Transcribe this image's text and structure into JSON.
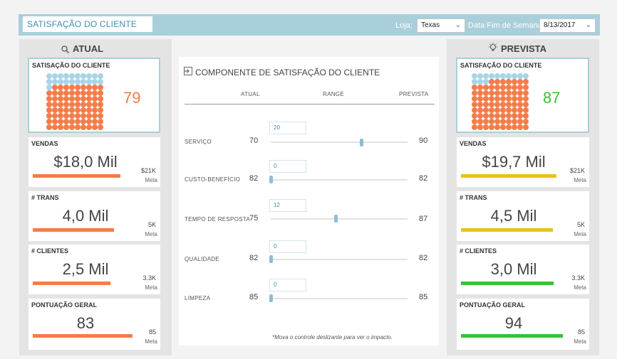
{
  "header": {
    "title": "SATISFAÇÃO DO CLIENTE",
    "store_label": "Loja:",
    "store_value": "Texas",
    "date_label": "Data Fim de Semana",
    "date_value": "8/13/2017"
  },
  "colors": {
    "orange": "#f47c4a",
    "light_blue": "#a8d5e6",
    "green": "#3bbf3b",
    "yellow": "#e8c21a"
  },
  "atual": {
    "title": "ATUAL",
    "satisfaction": {
      "label": "SATISAÇÃO DO CLIENTE",
      "value": "79",
      "percent": 79
    },
    "vendas": {
      "label": "VENDAS",
      "value": "$18,0 Mil",
      "meta": "$21K",
      "meta_label": "Meta",
      "fraction": 0.857
    },
    "trans": {
      "label": "# TRANS",
      "value": "4,0 Mil",
      "meta": "5K",
      "meta_label": "Meta",
      "fraction": 0.8
    },
    "clientes": {
      "label": "# CLIENTES",
      "value": "2,5 Mil",
      "meta": "3.3K",
      "meta_label": "Meta",
      "fraction": 0.76
    },
    "pontuacao": {
      "label": "PONTUAÇÃO GERAL",
      "value": "83",
      "meta": "85",
      "meta_label": "Meta",
      "fraction": 0.976
    }
  },
  "prevista": {
    "title": "PREVISTA",
    "satisfaction": {
      "label": "SATISFAÇÃO DO CLIENTE",
      "value": "87",
      "percent": 87
    },
    "vendas": {
      "label": "VENDAS",
      "value": "$19,7 Mil",
      "meta": "$21K",
      "meta_label": "Meta",
      "fraction": 0.938
    },
    "trans": {
      "label": "# TRANS",
      "value": "4,5 Mil",
      "meta": "5K",
      "meta_label": "Meta",
      "fraction": 0.9
    },
    "clientes": {
      "label": "# CLIENTES",
      "value": "3,0 Mil",
      "meta": "3.3K",
      "meta_label": "Meta",
      "fraction": 0.91
    },
    "pontuacao": {
      "label": "PONTUAÇÃO GERAL",
      "value": "94",
      "meta": "85",
      "meta_label": "Meta",
      "fraction": 1.0
    }
  },
  "components": {
    "title": "COMPONENTE DE SATISFAÇÃO DO CLIENTE",
    "col_atual": "ATUAL",
    "col_range": "RANGE",
    "col_prevista": "PREVISTA",
    "rows": [
      {
        "label": "SERVIÇO",
        "atual": "70",
        "range": "20",
        "prevista": "90",
        "slider": 0.67
      },
      {
        "label": "CUSTO-BENEFÍCIO",
        "atual": "82",
        "range": "0",
        "prevista": "82",
        "slider": 0.0
      },
      {
        "label": "TEMPO DE RESPOSTA",
        "atual": "75",
        "range": "12",
        "prevista": "87",
        "slider": 0.48
      },
      {
        "label": "QUALIDADE",
        "atual": "82",
        "range": "0",
        "prevista": "82",
        "slider": 0.0
      },
      {
        "label": "LIMPEZA",
        "atual": "85",
        "range": "0",
        "prevista": "85",
        "slider": 0.0
      }
    ],
    "note": "*Mova o controle deslizante para ver o impacto."
  }
}
